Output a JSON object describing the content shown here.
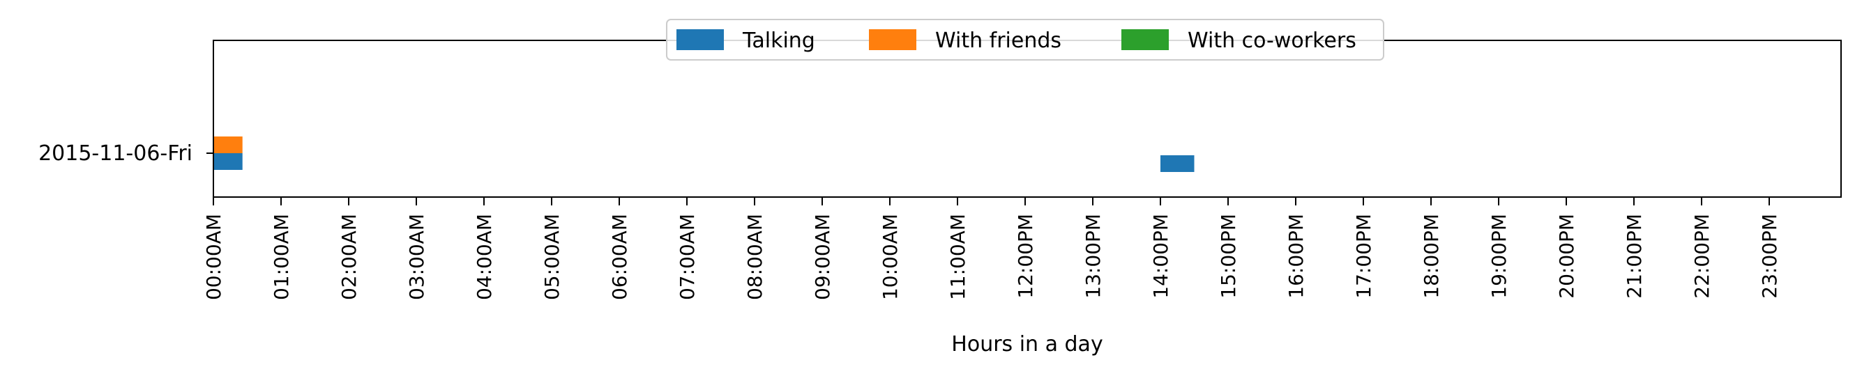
{
  "chart_data": {
    "type": "timeline",
    "title": "",
    "xlabel": "Hours in a day",
    "ylabel": "",
    "x_unit": "hours",
    "xlim": [
      0,
      24
    ],
    "x_ticks": [
      "00:00AM",
      "01:00AM",
      "02:00AM",
      "03:00AM",
      "04:00AM",
      "05:00AM",
      "06:00AM",
      "07:00AM",
      "08:00AM",
      "09:00AM",
      "10:00AM",
      "11:00AM",
      "12:00PM",
      "13:00PM",
      "14:00PM",
      "15:00PM",
      "16:00PM",
      "17:00PM",
      "18:00PM",
      "19:00PM",
      "20:00PM",
      "21:00PM",
      "22:00PM",
      "23:00PM"
    ],
    "categories": [
      "2015-11-06-Fri"
    ],
    "legend_position": "top-center",
    "grid": false,
    "series": [
      {
        "name": "Talking",
        "color": "#1f77b4",
        "segments": [
          {
            "category": "2015-11-06-Fri",
            "start": 0.0,
            "end": 0.43
          },
          {
            "category": "2015-11-06-Fri",
            "start": 14.0,
            "end": 14.5
          }
        ]
      },
      {
        "name": "With friends",
        "color": "#ff7f0e",
        "segments": [
          {
            "category": "2015-11-06-Fri",
            "start": 0.0,
            "end": 0.43
          }
        ]
      },
      {
        "name": "With co-workers",
        "color": "#2ca02c",
        "segments": []
      }
    ]
  }
}
